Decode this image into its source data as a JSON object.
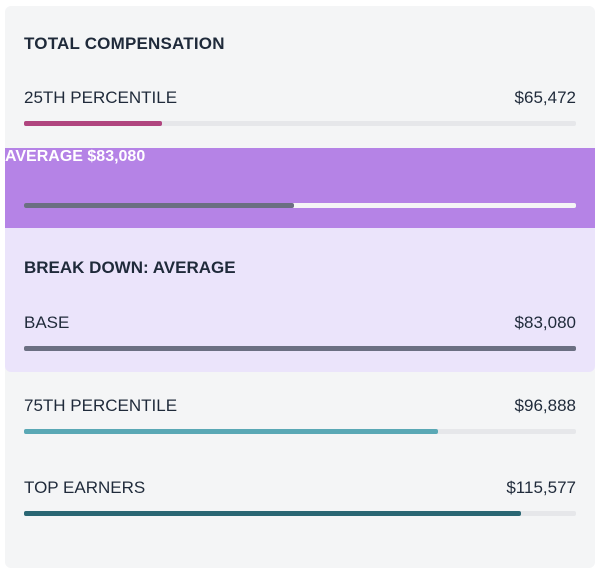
{
  "header": {
    "title": "TOTAL COMPENSATION"
  },
  "rows": {
    "p25": {
      "label": "25TH PERCENTILE",
      "value": "$65,472",
      "fraction": 0.25,
      "color": "#b0457f"
    },
    "average": {
      "label": "AVERAGE",
      "value": "$83,080",
      "fraction": 0.49,
      "color": "#6b6f82",
      "band_color": "#b583e6"
    },
    "p75": {
      "label": "75TH PERCENTILE",
      "value": "$96,888",
      "fraction": 0.75,
      "color": "#5aa8b5"
    },
    "top": {
      "label": "TOP EARNERS",
      "value": "$115,577",
      "fraction": 0.9,
      "color": "#2a6673"
    }
  },
  "breakdown": {
    "title": "BREAK DOWN: AVERAGE",
    "items": [
      {
        "label": "BASE",
        "value": "$83,080",
        "fraction": 1.0,
        "color": "#6b6f82"
      }
    ]
  }
}
